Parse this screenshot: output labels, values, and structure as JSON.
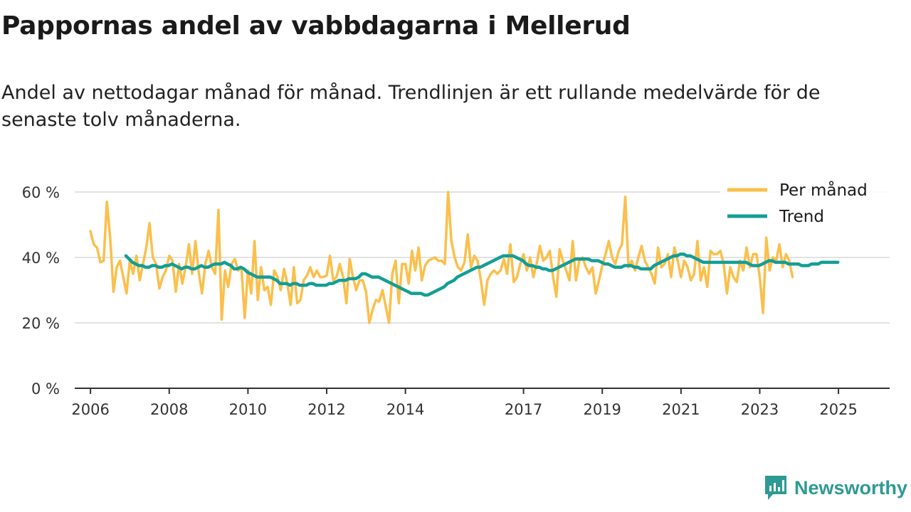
{
  "header": {
    "title": "Pappornas andel av vabbdagarna i Mellerud",
    "subtitle": "Andel av nettodagar månad för månad. Trendlinjen är ett rullande medelvärde för de senaste tolv månaderna."
  },
  "brand": {
    "name": "Newsworthy",
    "color": "#2e9a93",
    "icon": "newsworthy-logo-icon"
  },
  "colors": {
    "monthly": "#fbbf4b",
    "trend": "#139e95",
    "grid": "#d9d9d9",
    "axis": "#333333"
  },
  "chart_data": {
    "type": "line",
    "title": "Pappornas andel av vabbdagarna i Mellerud",
    "xlabel": "",
    "ylabel": "",
    "ylim": [
      0,
      60
    ],
    "xlim": [
      2005.6,
      2026.3
    ],
    "y_ticks": [
      0,
      20,
      40,
      60
    ],
    "y_tick_labels": [
      "0 %",
      "20 %",
      "40 %",
      "60 %"
    ],
    "x_ticks": [
      2006,
      2008,
      2010,
      2012,
      2014,
      2017,
      2019,
      2021,
      2023,
      2025
    ],
    "x_tick_labels": [
      "2006",
      "2008",
      "2010",
      "2012",
      "2014",
      "2017",
      "2019",
      "2021",
      "2023",
      "2025"
    ],
    "grid": true,
    "legend_position": "top-right",
    "series": [
      {
        "name": "Per månad",
        "start": 2006.0,
        "step": 0.0833333,
        "values": [
          48,
          44,
          43,
          38.5,
          39,
          57,
          46,
          29.5,
          37,
          39,
          34,
          29,
          39,
          35,
          40.5,
          33,
          38,
          43,
          50.5,
          40,
          38,
          30.5,
          34,
          36,
          40.5,
          39,
          29.5,
          38,
          32,
          37,
          44,
          35,
          45,
          35.5,
          29,
          38,
          42,
          37,
          35,
          54.5,
          21,
          36,
          31,
          38,
          39.5,
          36,
          37,
          21.5,
          36,
          29,
          45,
          27,
          37,
          30,
          31,
          25.5,
          36,
          34,
          30,
          36.5,
          32,
          25.5,
          37,
          26,
          27,
          33,
          34.5,
          37,
          34,
          36,
          34,
          34,
          34.5,
          40.5,
          33,
          34,
          38,
          34,
          26,
          39.5,
          34,
          30,
          33,
          33,
          29.5,
          20,
          24,
          27,
          26.5,
          30,
          25,
          20,
          35,
          39,
          26,
          38,
          38,
          32,
          42,
          36,
          43,
          33,
          37.5,
          39,
          39.5,
          40,
          39,
          39,
          38,
          60,
          45,
          40,
          37,
          36,
          38.5,
          47,
          37,
          40.5,
          39,
          33,
          25.5,
          33,
          35,
          36,
          35,
          36,
          39.5,
          35,
          44,
          32.5,
          34,
          38,
          41,
          36,
          40,
          34,
          38,
          43.5,
          39,
          40,
          42,
          34,
          28,
          42.5,
          39,
          36,
          33,
          45,
          33,
          39,
          40,
          37,
          35,
          37,
          29,
          33,
          37.5,
          41,
          45,
          40,
          38,
          42,
          44,
          58.5,
          37,
          39,
          36,
          40,
          43.5,
          39,
          37,
          35,
          32,
          43,
          37,
          38,
          41,
          34,
          43,
          39,
          34,
          39,
          37,
          33,
          35,
          45,
          33,
          37,
          31,
          42,
          41,
          41,
          42,
          38,
          29,
          37,
          34,
          32.5,
          39,
          36,
          43,
          37,
          41,
          41,
          34,
          23,
          46,
          36,
          40,
          39,
          44,
          37,
          41,
          39,
          34
        ]
      },
      {
        "name": "Trend",
        "start": 2006.9,
        "step": 0.0833333,
        "values": [
          40.5,
          39.5,
          38.5,
          38,
          37.5,
          37.5,
          37,
          37,
          37.5,
          37.5,
          37,
          37,
          37.5,
          37.5,
          38,
          37.5,
          37,
          36.5,
          37,
          37,
          36.5,
          36.5,
          37,
          37.5,
          37,
          37,
          37.5,
          38,
          38,
          38,
          38.5,
          38,
          37.5,
          36.5,
          36.5,
          37,
          36.5,
          35.5,
          35,
          34.5,
          34,
          34,
          34,
          34,
          34,
          33.5,
          33,
          32,
          32,
          32,
          31.5,
          32,
          32,
          31.5,
          31.5,
          31.5,
          32,
          32,
          31.5,
          31.5,
          31.5,
          31.5,
          32,
          32,
          32.5,
          33,
          33,
          33,
          33.5,
          33.5,
          33.5,
          34,
          35,
          35,
          34.5,
          34,
          34,
          34,
          33.5,
          33,
          32.5,
          32,
          31.5,
          31,
          30.5,
          30,
          29.5,
          29,
          29,
          29,
          29,
          28.5,
          28.5,
          29,
          29.5,
          30,
          30.5,
          31,
          32,
          32.5,
          33,
          34,
          34.5,
          35,
          35.5,
          36,
          36.5,
          37,
          37,
          37.5,
          38,
          38.5,
          39,
          39.5,
          40,
          40.5,
          40.5,
          40.5,
          40.5,
          40,
          39.5,
          39,
          38,
          37.5,
          37.5,
          37,
          37,
          36.5,
          36.5,
          36,
          36,
          36.5,
          37,
          37.5,
          38,
          38.5,
          39,
          39.5,
          39.5,
          39.5,
          39.5,
          39.5,
          39,
          39,
          39,
          38.5,
          38,
          38,
          37.5,
          37,
          37,
          37,
          37.5,
          37.5,
          37.5,
          37,
          37,
          36.5,
          36.5,
          36.5,
          36.5,
          37.5,
          38,
          38.5,
          39,
          39.5,
          40,
          40.5,
          40.5,
          41,
          41,
          40.5,
          40.5,
          40,
          39.5,
          39,
          38.5,
          38.5,
          38.5,
          38.5,
          38.5,
          38.5,
          38.5,
          38.5,
          38.5,
          38.5,
          38.5,
          38.5,
          38.5,
          38.5,
          38,
          37.5,
          37.5,
          37.5,
          38,
          38.5,
          39,
          39,
          38.5,
          38.5,
          38.5,
          38.5,
          38,
          38,
          38,
          38,
          37.5,
          37.5,
          37.5,
          38,
          38,
          38,
          38.5,
          38.5,
          38.5,
          38.5,
          38.5,
          38.5
        ]
      }
    ]
  }
}
